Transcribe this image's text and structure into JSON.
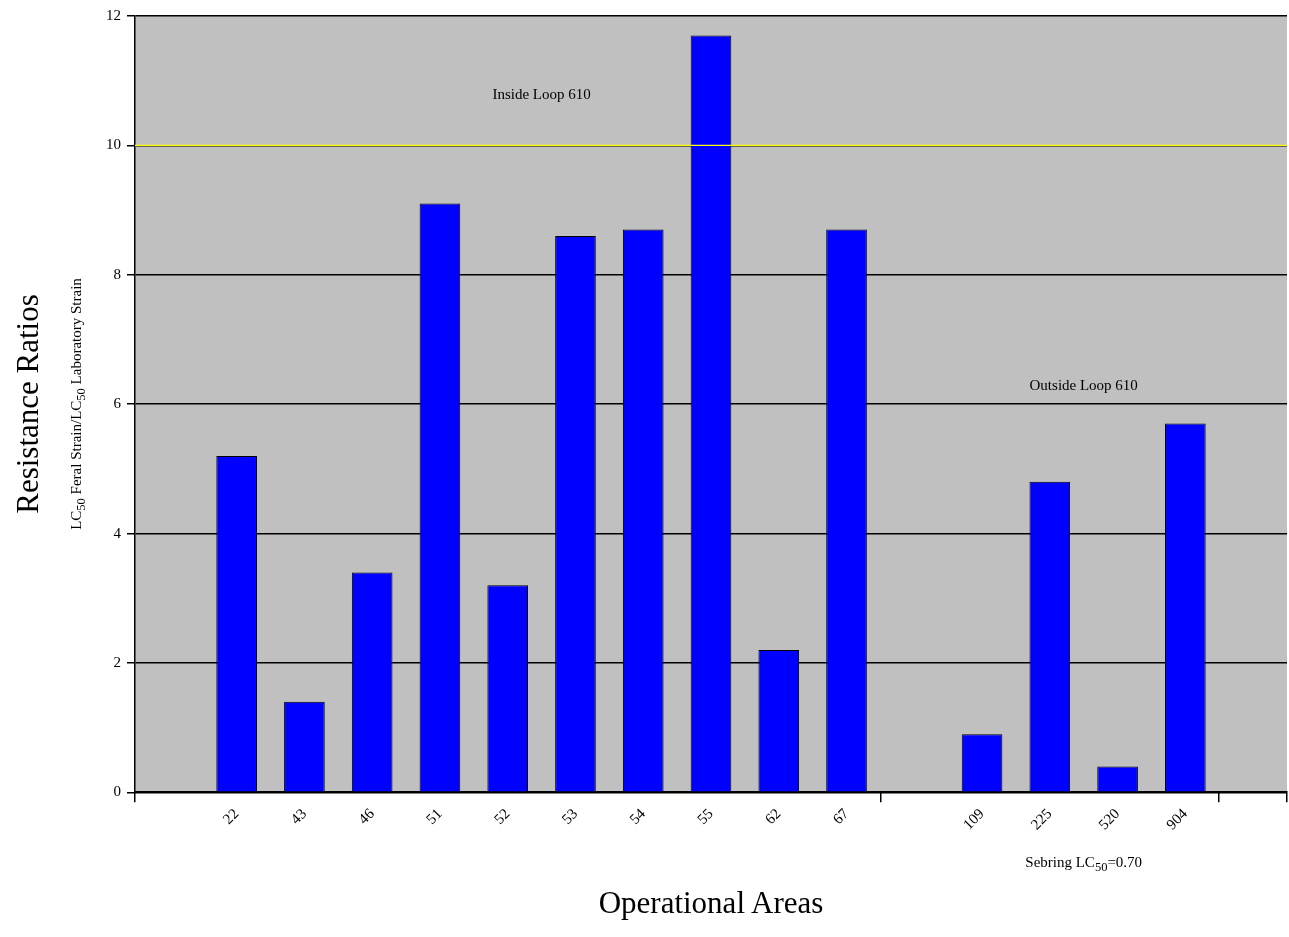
{
  "chart_data": {
    "type": "bar",
    "xlabel": "Operational Areas",
    "ylabel": "Resistance Ratios\nLC$_{50}$ Feral Strain/LC$_{50}$ Laboratory Strain",
    "categories": [
      null,
      "22",
      "43",
      "46",
      "51",
      "52",
      "53",
      "54",
      "55",
      "62",
      "67",
      null,
      "109",
      "225",
      "520",
      "904",
      null
    ],
    "values": [
      null,
      5.2,
      1.4,
      3.4,
      9.1,
      3.2,
      8.6,
      8.7,
      11.7,
      2.2,
      8.7,
      null,
      0.9,
      4.8,
      0.4,
      5.7,
      null
    ],
    "color": "#0000ff",
    "ylim": [
      0,
      12
    ],
    "yticks": [
      0,
      2,
      4,
      6,
      8,
      10,
      12
    ],
    "grid": "y",
    "legend": false,
    "ref_lines": [
      {
        "axis": "y",
        "value": 10,
        "color": "#ffff00"
      }
    ],
    "annotations": [
      "Inside Loop 610",
      "Outside Loop 610",
      "Sebring LC$_{50}$=0.70"
    ]
  }
}
